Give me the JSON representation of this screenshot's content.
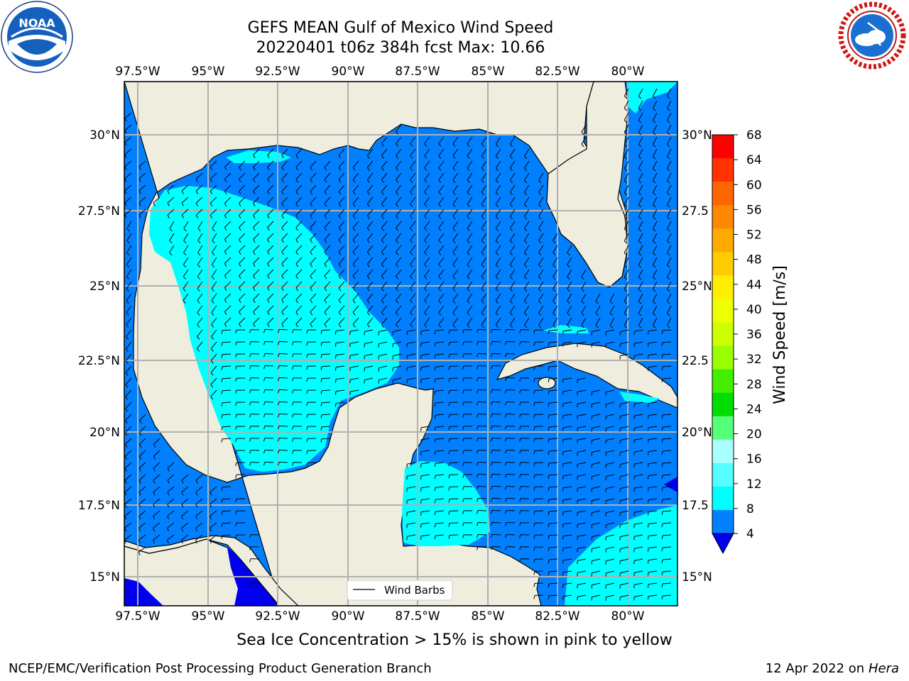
{
  "header": {
    "title_line1": "GEFS MEAN Gulf of Mexico Wind Speed",
    "title_line2": "20220401 t06z 384h fcst   Max: 10.66"
  },
  "logos": {
    "noaa": {
      "text": "NOAA",
      "ring_text": "NATIONAL OCEANIC AND ATMOSPHERIC ADMINISTRATION · U.S. DEPARTMENT OF COMMERCE"
    },
    "nws": {
      "ring_text": "NATIONAL WEATHER SERVICE"
    }
  },
  "map": {
    "lon_labels": [
      "97.5°W",
      "95°W",
      "92.5°W",
      "90°W",
      "87.5°W",
      "85°W",
      "82.5°W",
      "80°W"
    ],
    "lat_labels": [
      "30°N",
      "27.5°N",
      "25°N",
      "22.5°N",
      "20°N",
      "17.5°N",
      "15°N"
    ],
    "right_lat_labels": [
      "30°N",
      "27.5",
      "25°N",
      "22.5",
      "20°N",
      "17.5",
      "15°N"
    ],
    "legend_label": "Wind Barbs",
    "colors": {
      "land": "#efedde",
      "ocean_4_8": "#0080ff",
      "ocean_8_12": "#00ffff",
      "ocean_lt4": "#0000ee"
    }
  },
  "colorbar": {
    "label": "Wind Speed [m/s]",
    "ticks": [
      "68",
      "64",
      "60",
      "56",
      "52",
      "48",
      "44",
      "40",
      "36",
      "32",
      "28",
      "24",
      "20",
      "16",
      "12",
      "8",
      "4"
    ],
    "colors": [
      "#ff0000",
      "#ff3300",
      "#ff6600",
      "#ff8800",
      "#ffaa00",
      "#ffcc00",
      "#ffee00",
      "#eeff00",
      "#ccff00",
      "#99ff00",
      "#44ee00",
      "#00dd00",
      "#55ff77",
      "#aaffff",
      "#55ffff",
      "#00ffff",
      "#0080ff"
    ],
    "under_color": "#0000ee"
  },
  "caption": "Sea Ice Concentration > 15% is shown in pink to yellow",
  "footer": {
    "left": "NCEP/EMC/Verification Post Processing Product Generation Branch",
    "right_prefix": "12 Apr 2022 on ",
    "right_italic": "Hera"
  }
}
